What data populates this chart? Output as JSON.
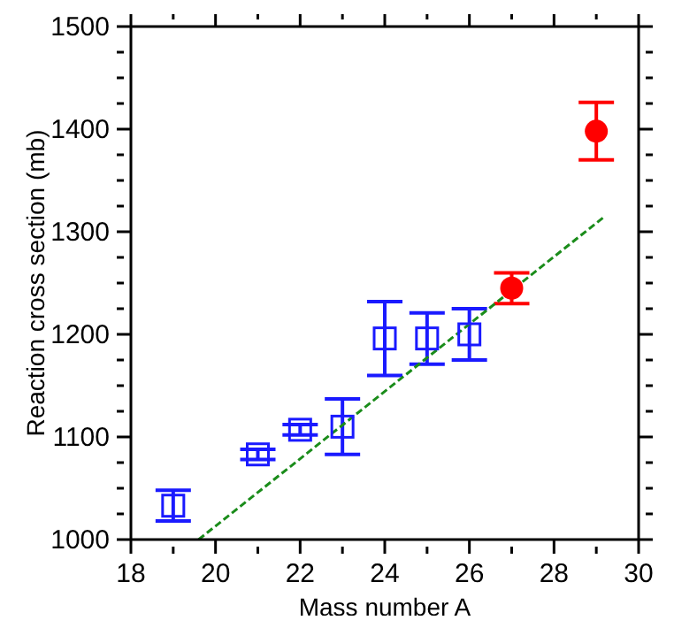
{
  "chart_data": {
    "type": "scatter",
    "xlabel": "Mass number A",
    "ylabel": "Reaction cross section (mb)",
    "xlim": [
      18,
      30
    ],
    "xticks": [
      18,
      {
        "value": 19,
        "label": null
      },
      20,
      {
        "value": 21,
        "label": null
      },
      22,
      {
        "value": 23,
        "label": null
      },
      24,
      {
        "value": 25,
        "label": null
      },
      26,
      {
        "value": 27,
        "label": null
      },
      28,
      {
        "value": 29,
        "label": null
      },
      30
    ],
    "ylim": [
      1000,
      1500
    ],
    "yticks": [
      1000,
      {
        "value": 1025,
        "label": null
      },
      {
        "value": 1050,
        "label": null
      },
      {
        "value": 1075,
        "label": null
      },
      1100,
      {
        "value": 1125,
        "label": null
      },
      {
        "value": 1150,
        "label": null
      },
      {
        "value": 1175,
        "label": null
      },
      1200,
      {
        "value": 1225,
        "label": null
      },
      {
        "value": 1250,
        "label": null
      },
      {
        "value": 1275,
        "label": null
      },
      1300,
      {
        "value": 1325,
        "label": null
      },
      {
        "value": 1350,
        "label": null
      },
      {
        "value": 1375,
        "label": null
      },
      1400,
      {
        "value": 1425,
        "label": null
      },
      {
        "value": 1450,
        "label": null
      },
      {
        "value": 1475,
        "label": null
      },
      1500
    ],
    "series": [
      {
        "marker": "square",
        "color": "#1a1aff",
        "x": [
          19,
          21,
          22,
          23,
          24,
          25,
          26
        ],
        "values": [
          1033,
          1083,
          1107,
          1110,
          1196,
          1196,
          1200
        ],
        "errors": [
          15,
          5,
          5,
          27,
          36,
          25,
          25
        ]
      },
      {
        "marker": "circle",
        "color": "#ff0000",
        "x": [
          27,
          29
        ],
        "values": [
          1245,
          1398
        ],
        "errors": [
          15,
          28
        ]
      },
      {
        "type": "line",
        "line_style": "dashed",
        "marker": "none",
        "color": "#1a8c1a",
        "x": [
          19.6,
          29.2
        ],
        "values": [
          1000,
          1315
        ]
      }
    ]
  }
}
